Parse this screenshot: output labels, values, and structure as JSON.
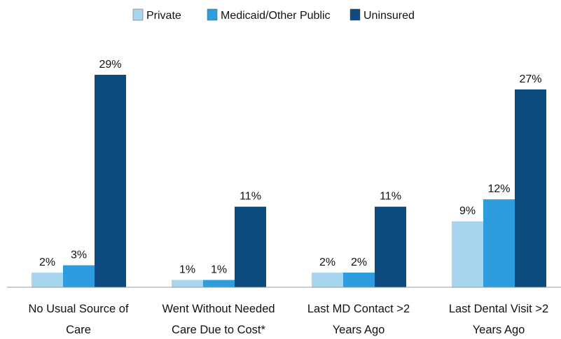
{
  "chart_data": {
    "type": "bar",
    "categories": [
      "No Usual Source of\nCare",
      "Went Without Needed\nCare Due to Cost*",
      "Last MD Contact >2\nYears Ago",
      "Last Dental Visit >2\nYears Ago"
    ],
    "series": [
      {
        "name": "Private",
        "color": "#a8d6ef",
        "values": [
          2,
          1,
          2,
          9
        ],
        "value_labels": [
          "2%",
          "1%",
          "2%",
          "9%"
        ]
      },
      {
        "name": "Medicaid/Other Public",
        "color": "#2d9de0",
        "values": [
          3,
          1,
          2,
          12
        ],
        "value_labels": [
          "3%",
          "1%",
          "2%",
          "12%"
        ]
      },
      {
        "name": "Uninsured",
        "color": "#0d4a80",
        "values": [
          29,
          11,
          11,
          27
        ],
        "value_labels": [
          "29%",
          "11%",
          "11%",
          "27%"
        ]
      }
    ],
    "legend": "top"
  }
}
